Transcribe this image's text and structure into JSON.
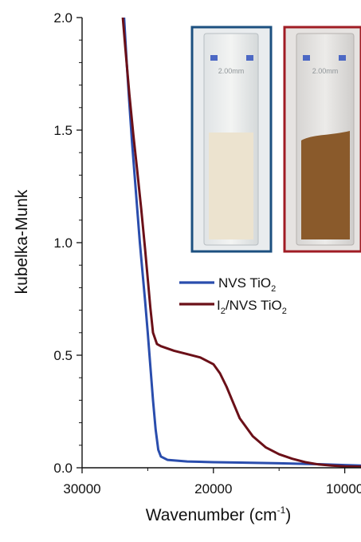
{
  "chart_data": {
    "type": "line",
    "xlabel": "Wavenumber (cm",
    "xlabel_sup": "-1",
    "xlabel_close": ")",
    "ylabel": "kubelka-Munk",
    "xlim": [
      30000,
      5000
    ],
    "ylim": [
      0.0,
      2.0
    ],
    "x_ticks": [
      30000,
      20000,
      10000
    ],
    "x_tick_labels": [
      "30000",
      "20000",
      "10000"
    ],
    "y_ticks": [
      0.0,
      0.5,
      1.0,
      1.5,
      2.0
    ],
    "y_tick_labels": [
      "0.0",
      "0.5",
      "1.0",
      "1.5",
      "2.0"
    ],
    "grid": false,
    "legend_position": "middle-right",
    "series": [
      {
        "name": "NVS TiO2",
        "legend_main": "NVS TiO",
        "legend_sub": "2",
        "color": "#2a4dad",
        "points": [
          [
            26800,
            2.0
          ],
          [
            26600,
            1.8
          ],
          [
            26400,
            1.62
          ],
          [
            26200,
            1.45
          ],
          [
            26000,
            1.3
          ],
          [
            25800,
            1.15
          ],
          [
            25600,
            1.0
          ],
          [
            25400,
            0.87
          ],
          [
            25200,
            0.74
          ],
          [
            25000,
            0.6
          ],
          [
            24800,
            0.45
          ],
          [
            24600,
            0.3
          ],
          [
            24400,
            0.17
          ],
          [
            24200,
            0.08
          ],
          [
            24000,
            0.05
          ],
          [
            23500,
            0.035
          ],
          [
            22000,
            0.028
          ],
          [
            20000,
            0.025
          ],
          [
            18000,
            0.023
          ],
          [
            15000,
            0.02
          ],
          [
            12000,
            0.016
          ],
          [
            10000,
            0.012
          ],
          [
            8000,
            0.008
          ],
          [
            5000,
            0.005
          ]
        ]
      },
      {
        "name": "I2/NVS TiO2",
        "legend_prefix": "I",
        "legend_sub1": "2",
        "legend_main": "/NVS TiO",
        "legend_sub2": "2",
        "color": "#6b1018",
        "points": [
          [
            26900,
            2.0
          ],
          [
            26700,
            1.86
          ],
          [
            26400,
            1.66
          ],
          [
            26100,
            1.48
          ],
          [
            25800,
            1.32
          ],
          [
            25500,
            1.15
          ],
          [
            25200,
            0.97
          ],
          [
            25000,
            0.84
          ],
          [
            24800,
            0.71
          ],
          [
            24600,
            0.6
          ],
          [
            24300,
            0.55
          ],
          [
            24000,
            0.54
          ],
          [
            23000,
            0.52
          ],
          [
            22000,
            0.505
          ],
          [
            21000,
            0.49
          ],
          [
            20000,
            0.46
          ],
          [
            19500,
            0.42
          ],
          [
            19000,
            0.36
          ],
          [
            18500,
            0.29
          ],
          [
            18000,
            0.22
          ],
          [
            17000,
            0.14
          ],
          [
            16000,
            0.09
          ],
          [
            15000,
            0.06
          ],
          [
            14000,
            0.04
          ],
          [
            13000,
            0.025
          ],
          [
            12000,
            0.015
          ],
          [
            11000,
            0.01
          ],
          [
            10000,
            0.006
          ],
          [
            8000,
            0.004
          ],
          [
            5000,
            0.002
          ]
        ]
      }
    ],
    "inset_photos": [
      {
        "name": "white-powder-cuvette",
        "frame_color": "#1c5080",
        "powder_color": "#ece3cf",
        "label": "2.00mm"
      },
      {
        "name": "brown-powder-cuvette",
        "frame_color": "#a01c24",
        "powder_color": "#8a5a2b",
        "label": "2.00mm"
      }
    ]
  }
}
